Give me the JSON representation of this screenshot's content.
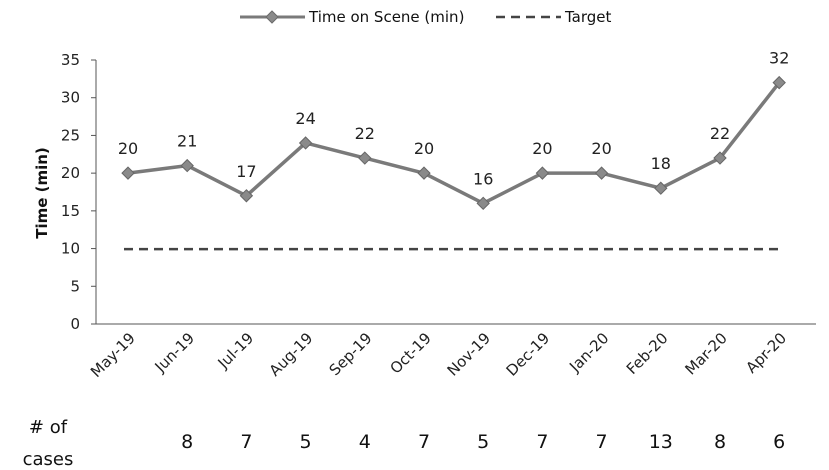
{
  "chart_data": {
    "type": "line",
    "categories": [
      "May-19",
      "Jun-19",
      "Jul-19",
      "Aug-19",
      "Sep-19",
      "Oct-19",
      "Nov-19",
      "Dec-19",
      "Jan-20",
      "Feb-20",
      "Mar-20",
      "Apr-20"
    ],
    "series": [
      {
        "name": "Time on Scene (min)",
        "values": [
          20,
          21,
          17,
          24,
          22,
          20,
          16,
          20,
          20,
          18,
          22,
          32
        ],
        "color": "#7a7a7a",
        "marker": "diamond",
        "data_labels": true
      },
      {
        "name": "Target",
        "values": [
          10,
          10,
          10,
          10,
          10,
          10,
          10,
          10,
          10,
          10,
          10,
          10
        ],
        "color": "#444444",
        "style": "dashed",
        "data_labels": false
      }
    ],
    "ylabel": "Time (min)",
    "xlabel": "",
    "ylim": [
      0,
      35
    ],
    "yticks": [
      0,
      5,
      10,
      15,
      20,
      25,
      30,
      35
    ],
    "grid": false,
    "legend_position": "top-center"
  },
  "cases": {
    "header_line1": "# of",
    "header_line2": "cases",
    "values": [
      "",
      "8",
      "7",
      "5",
      "4",
      "7",
      "5",
      "7",
      "7",
      "13",
      "8",
      "6"
    ]
  }
}
